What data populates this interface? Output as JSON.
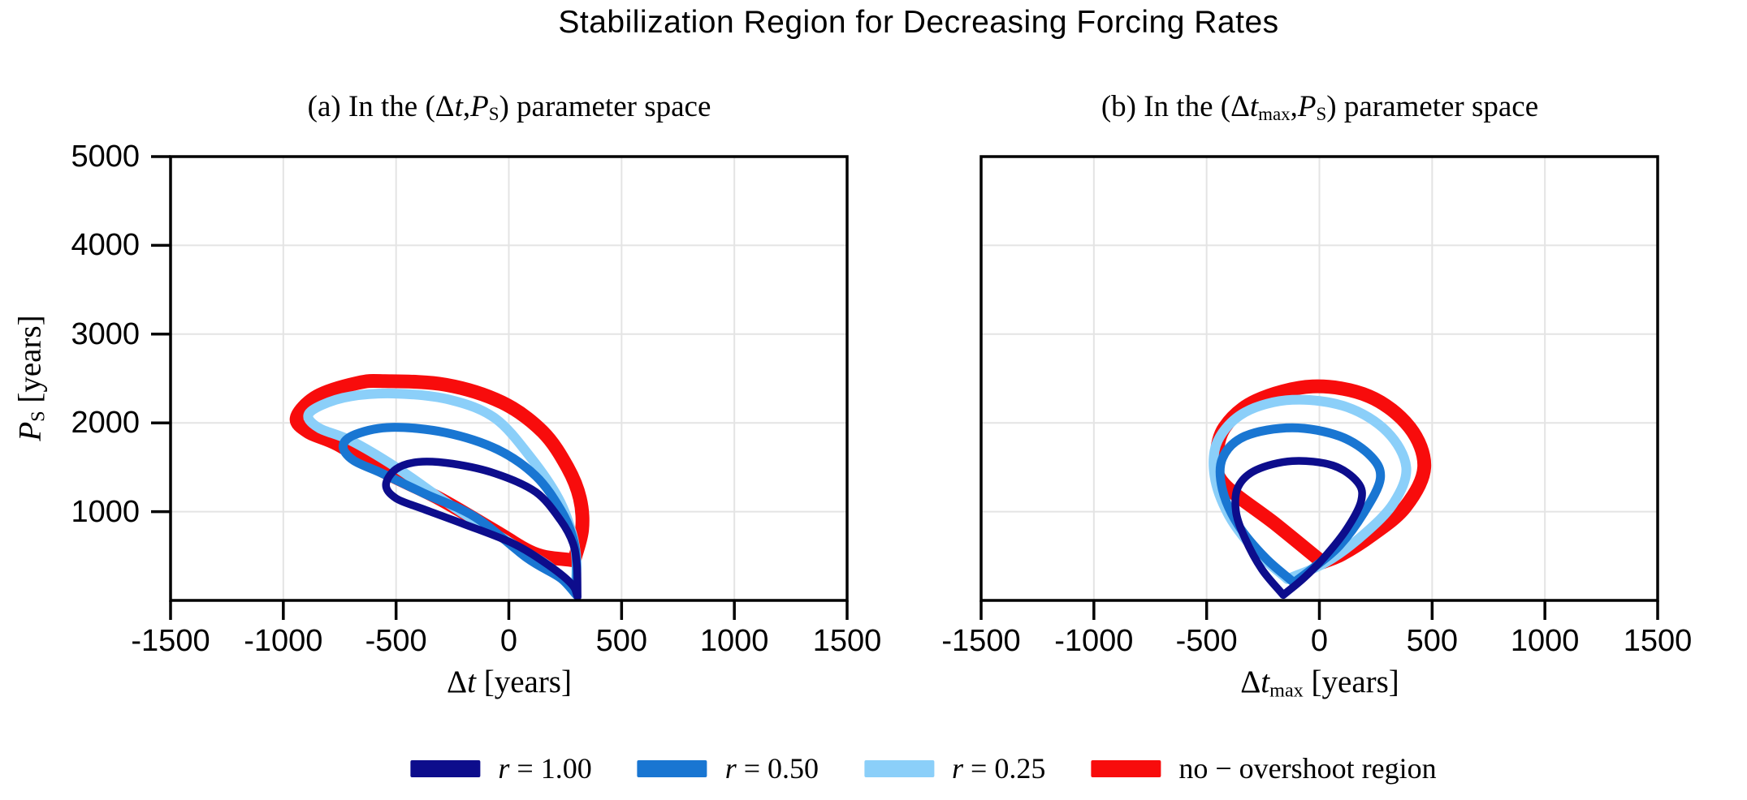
{
  "colors": {
    "navy": "#0d0d8c",
    "blue": "#1976d2",
    "lightblue": "#8bcff9",
    "red": "#f80c0c",
    "grid": "#e4e4e4",
    "axis": "#000000"
  },
  "chart_data": {
    "type": "line",
    "suptitle": "Stabilization Region for Decreasing Forcing Rates",
    "grid": true,
    "legend_position": "bottom-center",
    "legend": [
      {
        "var": "r",
        "text": "= 1.00",
        "color_key": "navy"
      },
      {
        "var": "r",
        "text": "= 0.50",
        "color_key": "blue"
      },
      {
        "var": "r",
        "text": "= 0.25",
        "color_key": "lightblue"
      },
      {
        "var": "",
        "text": "no − overshoot region",
        "color_key": "red"
      }
    ],
    "panels": [
      {
        "id": "a",
        "title": {
          "pre": "(a) In the (Δ",
          "var1": "t",
          "sub1": "",
          "comma": ",",
          "var2": "P",
          "sub2": "S",
          "post": ") parameter space"
        },
        "xlabel": {
          "delta": "Δ",
          "var": "t",
          "sub": "",
          "unit": " [years]"
        },
        "ylabel": {
          "var": "P",
          "sub": "S",
          "unit": " [years]"
        },
        "xlim": [
          -1500,
          1500
        ],
        "ylim": [
          0,
          5000
        ],
        "xticks": [
          -1500,
          -1000,
          -500,
          0,
          500,
          1000,
          1500
        ],
        "xtick_labels": [
          "-1500",
          "-1000",
          "-500",
          "0",
          "500",
          "1000",
          "1500"
        ],
        "yticks": [
          1000,
          2000,
          3000,
          4000,
          5000
        ],
        "ytick_labels": [
          "1000",
          "2000",
          "3000",
          "4000",
          "5000"
        ],
        "series": [
          {
            "name": "no-overshoot region",
            "color_key": "red",
            "width": 17,
            "points": [
              [
                290,
                450
              ],
              [
                325,
                800
              ],
              [
                315,
                1150
              ],
              [
                260,
                1500
              ],
              [
                150,
                1900
              ],
              [
                -30,
                2230
              ],
              [
                -280,
                2430
              ],
              [
                -550,
                2470
              ],
              [
                -670,
                2450
              ],
              [
                -850,
                2300
              ],
              [
                -940,
                2060
              ],
              [
                -890,
                1900
              ],
              [
                -760,
                1760
              ],
              [
                -560,
                1460
              ],
              [
                -310,
                1150
              ],
              [
                -60,
                780
              ],
              [
                120,
                520
              ]
            ]
          },
          {
            "name": "r = 0.25",
            "color_key": "lightblue",
            "width": 12,
            "points": [
              [
                295,
                90
              ],
              [
                300,
                450
              ],
              [
                280,
                760
              ],
              [
                220,
                1150
              ],
              [
                100,
                1600
              ],
              [
                -60,
                2050
              ],
              [
                -260,
                2260
              ],
              [
                -500,
                2330
              ],
              [
                -700,
                2300
              ],
              [
                -830,
                2200
              ],
              [
                -890,
                2080
              ],
              [
                -840,
                1940
              ],
              [
                -700,
                1800
              ],
              [
                -500,
                1500
              ],
              [
                -250,
                1060
              ],
              [
                0,
                660
              ],
              [
                180,
                380
              ]
            ]
          },
          {
            "name": "r = 0.50",
            "color_key": "blue",
            "width": 11,
            "points": [
              [
                300,
                60
              ],
              [
                300,
                420
              ],
              [
                285,
                700
              ],
              [
                230,
                1020
              ],
              [
                120,
                1400
              ],
              [
                -50,
                1700
              ],
              [
                -280,
                1890
              ],
              [
                -520,
                1950
              ],
              [
                -680,
                1870
              ],
              [
                -735,
                1740
              ],
              [
                -690,
                1580
              ],
              [
                -560,
                1430
              ],
              [
                -380,
                1210
              ],
              [
                -150,
                940
              ],
              [
                80,
                480
              ],
              [
                230,
                250
              ]
            ]
          },
          {
            "name": "r = 1.00",
            "color_key": "navy",
            "width": 9.5,
            "points": [
              [
                305,
                40
              ],
              [
                302,
                380
              ],
              [
                285,
                640
              ],
              [
                230,
                900
              ],
              [
                120,
                1220
              ],
              [
                -60,
                1430
              ],
              [
                -250,
                1540
              ],
              [
                -400,
                1560
              ],
              [
                -500,
                1480
              ],
              [
                -545,
                1300
              ],
              [
                -500,
                1150
              ],
              [
                -380,
                1030
              ],
              [
                -200,
                860
              ],
              [
                20,
                640
              ],
              [
                180,
                390
              ],
              [
                280,
                180
              ]
            ]
          }
        ]
      },
      {
        "id": "b",
        "title": {
          "pre": "(b) In the (Δ",
          "var1": "t",
          "sub1": "max",
          "comma": ",",
          "var2": "P",
          "sub2": "S",
          "post": ") parameter space"
        },
        "xlabel": {
          "delta": "Δ",
          "var": "t",
          "sub": "max",
          "unit": " [years]"
        },
        "ylabel": null,
        "xlim": [
          -1500,
          1500
        ],
        "ylim": [
          0,
          5000
        ],
        "xticks": [
          -1500,
          -1000,
          -500,
          0,
          500,
          1000,
          1500
        ],
        "xtick_labels": [
          "-1500",
          "-1000",
          "-500",
          "0",
          "500",
          "1000",
          "1500"
        ],
        "yticks": [
          1000,
          2000,
          3000,
          4000,
          5000
        ],
        "ytick_labels": [],
        "series": [
          {
            "name": "no-overshoot region",
            "color_key": "red",
            "width": 17,
            "points": [
              [
                13,
                430
              ],
              [
                -200,
                870
              ],
              [
                -423,
                1310
              ],
              [
                -455,
                1600
              ],
              [
                -420,
                1950
              ],
              [
                -280,
                2250
              ],
              [
                -30,
                2410
              ],
              [
                220,
                2300
              ],
              [
                400,
                1950
              ],
              [
                465,
                1500
              ],
              [
                380,
                1050
              ],
              [
                230,
                730
              ],
              [
                100,
                520
              ]
            ]
          },
          {
            "name": "r = 0.25",
            "color_key": "lightblue",
            "width": 12,
            "points": [
              [
                -142,
                240
              ],
              [
                -280,
                550
              ],
              [
                -400,
                950
              ],
              [
                -465,
                1400
              ],
              [
                -450,
                1800
              ],
              [
                -330,
                2120
              ],
              [
                -120,
                2260
              ],
              [
                120,
                2180
              ],
              [
                300,
                1900
              ],
              [
                385,
                1500
              ],
              [
                330,
                1100
              ],
              [
                200,
                750
              ],
              [
                30,
                430
              ]
            ]
          },
          {
            "name": "r = 0.50",
            "color_key": "blue",
            "width": 11,
            "points": [
              [
                -113,
                200
              ],
              [
                -240,
                480
              ],
              [
                -360,
                850
              ],
              [
                -430,
                1250
              ],
              [
                -430,
                1600
              ],
              [
                -330,
                1850
              ],
              [
                -120,
                1945
              ],
              [
                90,
                1850
              ],
              [
                230,
                1620
              ],
              [
                270,
                1370
              ],
              [
                200,
                1000
              ],
              [
                90,
                620
              ],
              [
                -20,
                380
              ]
            ]
          },
          {
            "name": "r = 1.00",
            "color_key": "navy",
            "width": 9.5,
            "points": [
              [
                -160,
                60
              ],
              [
                -255,
                350
              ],
              [
                -330,
                700
              ],
              [
                -370,
                1000
              ],
              [
                -360,
                1280
              ],
              [
                -280,
                1470
              ],
              [
                -120,
                1570
              ],
              [
                60,
                1520
              ],
              [
                170,
                1330
              ],
              [
                185,
                1120
              ],
              [
                120,
                800
              ],
              [
                20,
                480
              ],
              [
                -70,
                250
              ]
            ]
          }
        ]
      }
    ]
  }
}
